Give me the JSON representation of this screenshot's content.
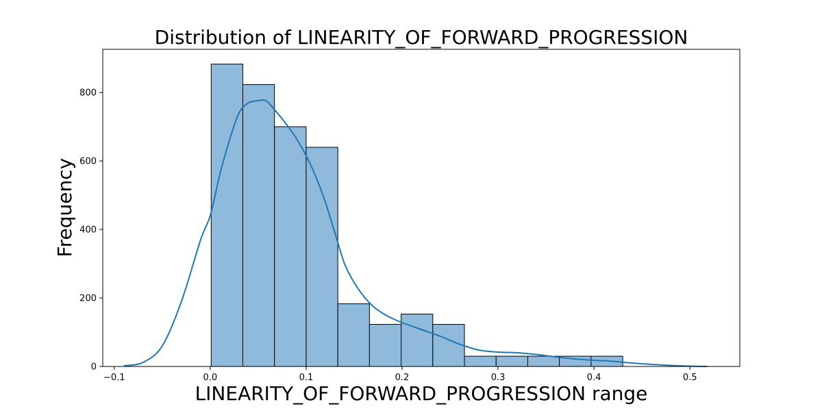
{
  "chart_data": {
    "type": "bar",
    "subtype": "histogram_with_kde",
    "title": "Distribution of LINEARITY_OF_FORWARD_PROGRESSION",
    "xlabel": "LINEARITY_OF_FORWARD_PROGRESSION range",
    "ylabel": "Frequency",
    "xlim": [
      -0.112,
      0.552
    ],
    "ylim": [
      0,
      926
    ],
    "xticks": [
      -0.1,
      0.0,
      0.1,
      0.2,
      0.3,
      0.4,
      0.5
    ],
    "xtick_labels": [
      "−0.1",
      "0.0",
      "0.1",
      "0.2",
      "0.3",
      "0.4",
      "0.5"
    ],
    "yticks": [
      0,
      200,
      400,
      600,
      800
    ],
    "ytick_labels": [
      "0",
      "200",
      "400",
      "600",
      "800"
    ],
    "grid": false,
    "bins": [
      {
        "x0": 0.001,
        "x1": 0.034,
        "count": 883
      },
      {
        "x0": 0.034,
        "x1": 0.067,
        "count": 823
      },
      {
        "x0": 0.067,
        "x1": 0.1,
        "count": 700
      },
      {
        "x0": 0.1,
        "x1": 0.133,
        "count": 640
      },
      {
        "x0": 0.133,
        "x1": 0.166,
        "count": 183
      },
      {
        "x0": 0.166,
        "x1": 0.199,
        "count": 123
      },
      {
        "x0": 0.199,
        "x1": 0.232,
        "count": 153
      },
      {
        "x0": 0.232,
        "x1": 0.265,
        "count": 123
      },
      {
        "x0": 0.265,
        "x1": 0.298,
        "count": 30
      },
      {
        "x0": 0.298,
        "x1": 0.331,
        "count": 30
      },
      {
        "x0": 0.331,
        "x1": 0.364,
        "count": 30
      },
      {
        "x0": 0.364,
        "x1": 0.397,
        "count": 30
      },
      {
        "x0": 0.397,
        "x1": 0.43,
        "count": 30
      }
    ],
    "kde": {
      "x": [
        -0.09,
        -0.07,
        -0.05,
        -0.03,
        -0.01,
        0.0,
        0.01,
        0.02,
        0.03,
        0.04,
        0.05,
        0.055,
        0.06,
        0.07,
        0.08,
        0.09,
        0.1,
        0.11,
        0.12,
        0.13,
        0.14,
        0.15,
        0.16,
        0.17,
        0.18,
        0.19,
        0.2,
        0.22,
        0.24,
        0.26,
        0.28,
        0.3,
        0.32,
        0.34,
        0.36,
        0.38,
        0.4,
        0.42,
        0.44,
        0.46,
        0.48,
        0.5,
        0.518
      ],
      "y": [
        2,
        12,
        60,
        190,
        370,
        440,
        560,
        660,
        740,
        770,
        776,
        778,
        772,
        740,
        705,
        665,
        615,
        555,
        480,
        390,
        300,
        245,
        205,
        175,
        155,
        140,
        128,
        108,
        88,
        65,
        48,
        42,
        40,
        35,
        28,
        22,
        18,
        15,
        10,
        6,
        3,
        1,
        0
      ]
    },
    "colors": {
      "bar_fill": "#8fbadb",
      "bar_edge": "#000000",
      "kde_line": "#1f77b4"
    }
  }
}
